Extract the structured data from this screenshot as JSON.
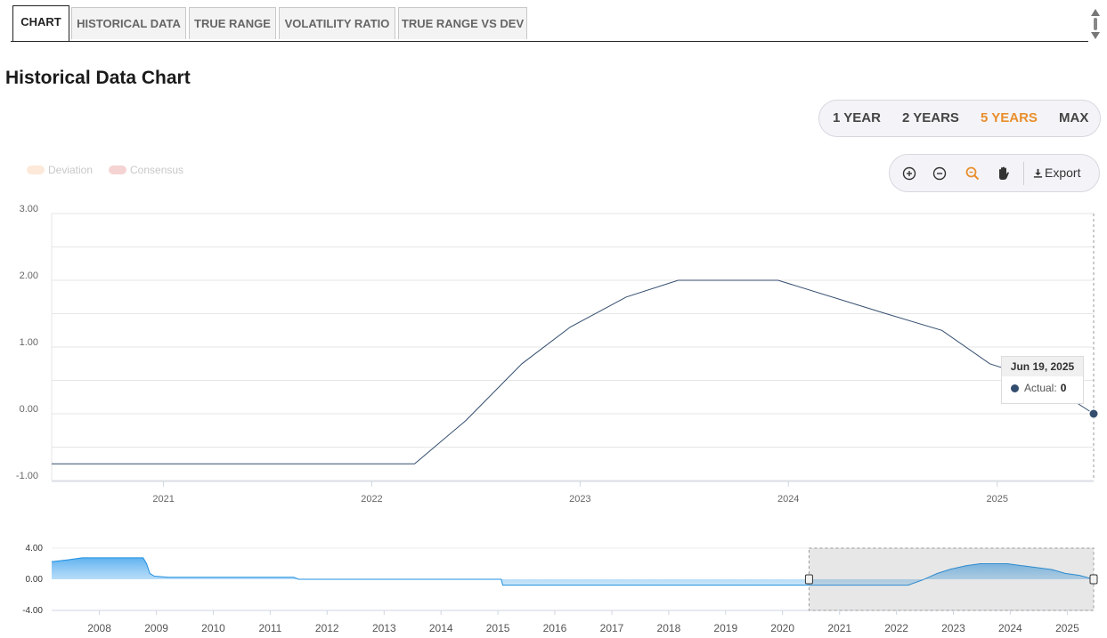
{
  "tabs": [
    {
      "label": "CHART",
      "active": true
    },
    {
      "label": "HISTORICAL DATA",
      "active": false
    },
    {
      "label": "TRUE RANGE",
      "active": false
    },
    {
      "label": "VOLATILITY RATIO",
      "active": false
    },
    {
      "label": "TRUE RANGE VS DEV",
      "active": false
    }
  ],
  "page_title": "Historical Data Chart",
  "ranges": [
    {
      "label": "1 YEAR",
      "active": false
    },
    {
      "label": "2 YEARS",
      "active": false
    },
    {
      "label": "5 YEARS",
      "active": true
    },
    {
      "label": "MAX",
      "active": false
    }
  ],
  "legend": [
    {
      "label": "Deviation",
      "color": "#fde9d9",
      "enabled": false
    },
    {
      "label": "Consensus",
      "color": "#f6d3d3",
      "enabled": false
    }
  ],
  "toolbar": {
    "icons": [
      "zoom-in-icon",
      "zoom-out-icon",
      "magnifier-icon",
      "pan-hand-icon"
    ],
    "active_icon": "magnifier-icon",
    "export_label": "Export",
    "export_icon": "download-icon"
  },
  "tooltip": {
    "date": "Jun 19, 2025",
    "series": "Actual:",
    "value": "0"
  },
  "colors": {
    "line": "#334d6e",
    "accent": "#e88e2d",
    "navigator_fill": "#9fd0f5",
    "navigator_line": "#1f8fe0"
  },
  "chart_data": [
    {
      "type": "line",
      "y_tick_labels": [
        "3.00",
        "2.00",
        "1.00",
        "0.00",
        "-1.00"
      ],
      "ylim": [
        -1,
        3
      ],
      "x_tick_labels": [
        "2021",
        "2022",
        "2023",
        "2024",
        "2025"
      ],
      "xlim": [
        "2020-06-19",
        "2025-06-19"
      ],
      "grid": true,
      "series": [
        {
          "points": [
            [
              "2020-06-19",
              -0.75
            ],
            [
              "2022-03-17",
              -0.75
            ],
            [
              "2022-06-15",
              -0.1
            ],
            [
              "2022-09-21",
              0.75
            ],
            [
              "2022-12-15",
              1.3
            ],
            [
              "2023-03-23",
              1.75
            ],
            [
              "2023-06-22",
              2.0
            ],
            [
              "2023-12-14",
              2.0
            ],
            [
              "2024-06-20",
              1.5
            ],
            [
              "2024-09-26",
              1.25
            ],
            [
              "2024-12-19",
              0.75
            ],
            [
              "2025-03-20",
              0.5
            ],
            [
              "2025-06-19",
              0.0
            ]
          ]
        }
      ]
    },
    {
      "type": "area",
      "y_tick_labels": [
        "4.00",
        "0.00",
        "-4.00"
      ],
      "ylim": [
        -4,
        4
      ],
      "x_tick_labels": [
        "2008",
        "2009",
        "2010",
        "2011",
        "2012",
        "2013",
        "2014",
        "2015",
        "2016",
        "2017",
        "2018",
        "2019",
        "2020",
        "2021",
        "2022",
        "2023",
        "2024",
        "2025"
      ],
      "xlim": [
        "2007-03-01",
        "2025-06-19"
      ],
      "selected_range": [
        "2020-06-19",
        "2025-06-19"
      ],
      "series": [
        {
          "points": [
            [
              "2007-03-01",
              2.25
            ],
            [
              "2007-06-14",
              2.5
            ],
            [
              "2007-09-13",
              2.75
            ],
            [
              "2008-10-08",
              2.75
            ],
            [
              "2008-10-30",
              2.0
            ],
            [
              "2008-11-20",
              0.75
            ],
            [
              "2008-12-18",
              0.4
            ],
            [
              "2009-03-19",
              0.25
            ],
            [
              "2011-06-01",
              0.25
            ],
            [
              "2011-07-01",
              0.0
            ],
            [
              "2015-01-22",
              0.0
            ],
            [
              "2015-02-01",
              -0.75
            ],
            [
              "2022-03-17",
              -0.75
            ],
            [
              "2022-06-15",
              -0.1
            ],
            [
              "2022-09-21",
              0.75
            ],
            [
              "2022-12-15",
              1.3
            ],
            [
              "2023-03-23",
              1.75
            ],
            [
              "2023-06-22",
              2.0
            ],
            [
              "2023-12-14",
              2.0
            ],
            [
              "2024-06-20",
              1.5
            ],
            [
              "2024-09-26",
              1.25
            ],
            [
              "2024-12-19",
              0.75
            ],
            [
              "2025-03-20",
              0.5
            ],
            [
              "2025-06-19",
              0.0
            ]
          ]
        }
      ]
    }
  ]
}
